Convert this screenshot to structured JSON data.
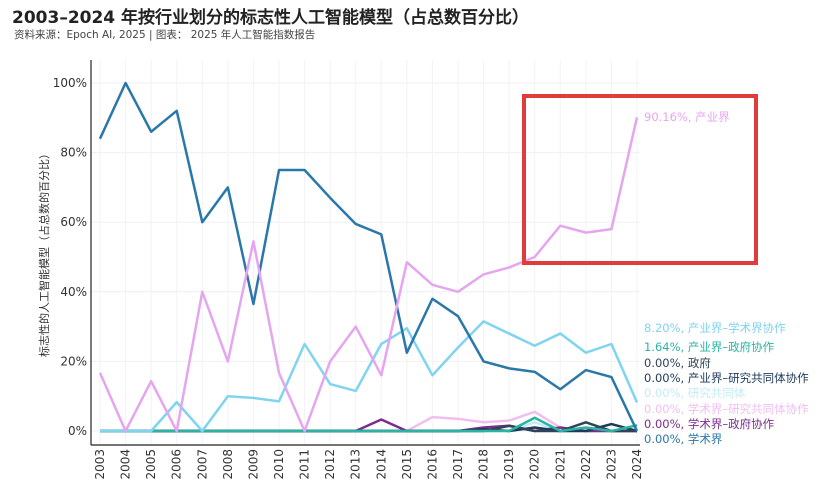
{
  "title": "2003–2024 年按行业划分的标志性人工智能模型（占总数百分比）",
  "subtitle": "资料来源：Epoch AI, 2025 | 图表： 2025 年人工智能指数报告",
  "chart_data": {
    "type": "line",
    "title": "2003–2024 年按行业划分的标志性人工智能模型（占总数百分比）",
    "xlabel": "",
    "ylabel": "标志性的人工智能模型（占总数的百分比）",
    "ylim": [
      0,
      100
    ],
    "yticks": [
      "0%",
      "20%",
      "40%",
      "60%",
      "80%",
      "100%"
    ],
    "ytick_values": [
      0,
      20,
      40,
      60,
      80,
      100
    ],
    "x": [
      "2003",
      "2004",
      "2005",
      "2006",
      "2007",
      "2008",
      "2009",
      "2010",
      "2011",
      "2012",
      "2013",
      "2014",
      "2015",
      "2016",
      "2017",
      "2018",
      "2019",
      "2020",
      "2021",
      "2022",
      "2023",
      "2024"
    ],
    "grid": true,
    "highlight_box_color": "#e03c3c",
    "series": [
      {
        "name": "学术界",
        "end_label": "0.00%, 学术界",
        "color": "#2a77aa",
        "values": [
          84,
          100,
          86,
          92,
          60,
          70,
          36.5,
          75,
          75,
          67,
          59.5,
          56.5,
          22.5,
          38,
          33,
          20,
          18,
          17,
          12,
          17.5,
          15.5,
          0
        ]
      },
      {
        "name": "产业界",
        "end_label": "90.16%, 产业界",
        "color": "#e6a5f0",
        "values": [
          16.7,
          0,
          14.3,
          0,
          40,
          20,
          54.5,
          16.7,
          0,
          20,
          30,
          16,
          48.5,
          42,
          40,
          45,
          47,
          50,
          59,
          57,
          58,
          90.16
        ]
      },
      {
        "name": "产业界–学术界协作",
        "end_label": "8.20%, 产业界–学术界协作",
        "color": "#7fd4f0",
        "values": [
          0,
          0,
          0,
          8.3,
          0,
          10,
          9.5,
          8.5,
          25,
          13.5,
          11.5,
          25,
          29.5,
          16,
          24,
          31.5,
          28,
          24.5,
          28,
          22.5,
          25,
          8.2
        ]
      },
      {
        "name": "产业界–政府协作",
        "end_label": "1.64%, 产业界–政府协作",
        "color": "#2bb3a3",
        "values": [
          0,
          0,
          0,
          0,
          0,
          0,
          0,
          0,
          0,
          0,
          0,
          0,
          0,
          0,
          0,
          0,
          0,
          3.8,
          0,
          1,
          0,
          1.64
        ]
      },
      {
        "name": "政府",
        "end_label": "0.00%, 政府",
        "color": "#2f4457",
        "values": [
          0,
          0,
          0,
          0,
          0,
          0,
          0,
          0,
          0,
          0,
          0,
          0,
          0,
          0,
          0,
          0,
          1.5,
          0,
          0,
          2.5,
          0,
          0
        ]
      },
      {
        "name": "产业界–研究共同体协作",
        "end_label": "0.00%, 产业界–研究共同体协作",
        "color": "#1d3a5c",
        "values": [
          0,
          0,
          0,
          0,
          0,
          0,
          0,
          0,
          0,
          0,
          0,
          0,
          0,
          0,
          0,
          0.5,
          0,
          1,
          0,
          0,
          2,
          0
        ]
      },
      {
        "name": "研究共同体",
        "end_label": "0.00%, 研究共同体",
        "color": "#c4ecf6",
        "values": [
          0,
          0,
          0,
          0,
          0,
          0,
          0,
          0,
          0,
          0,
          0,
          0,
          0,
          0,
          0,
          0,
          0,
          2.5,
          0,
          0,
          0,
          0
        ]
      },
      {
        "name": "学术界–研究共同体协作",
        "end_label": "0.00%, 学术界–研究共同体协作",
        "color": "#f0bff0",
        "values": [
          0,
          0,
          0,
          0,
          0,
          0,
          0,
          0,
          0,
          0,
          0,
          0,
          0,
          4,
          3.5,
          2.5,
          3,
          5.5,
          1,
          0,
          0,
          0
        ]
      },
      {
        "name": "学术界–政府协作",
        "end_label": "0.00%, 学术界–政府协作",
        "color": "#7b2d8e",
        "values": [
          0,
          0,
          0,
          0,
          0,
          0,
          0,
          0,
          0,
          0,
          0,
          3.3,
          0,
          0,
          0,
          1,
          1.5,
          0,
          1,
          0,
          0,
          0
        ]
      }
    ]
  }
}
